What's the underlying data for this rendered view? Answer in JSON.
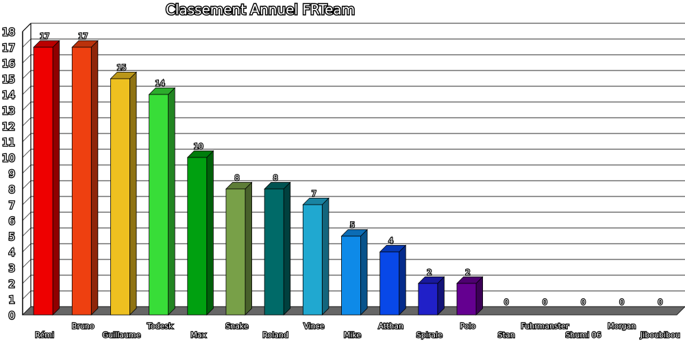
{
  "chart_data": {
    "type": "bar",
    "title": "Classement Annuel FRTeam",
    "xlabel": "",
    "ylabel": "",
    "ylim": [
      0,
      18
    ],
    "yticks": [
      0,
      1,
      2,
      3,
      4,
      5,
      6,
      7,
      8,
      9,
      10,
      11,
      12,
      13,
      14,
      15,
      16,
      17,
      18
    ],
    "grid": true,
    "legend": "none",
    "style": "3d",
    "categories": [
      "Rémi",
      "Bruno",
      "Guillaume",
      "Todesk",
      "Max",
      "Snake",
      "Roland",
      "Vince",
      "Mike",
      "Atthan",
      "Spirale",
      "Polo",
      "Stan",
      "Fuhrmanster",
      "Shumi 06",
      "Morgan",
      "Jiboubibou"
    ],
    "values": [
      17,
      17,
      15,
      14,
      10,
      8,
      8,
      7,
      5,
      4,
      2,
      2,
      0,
      0,
      0,
      0,
      0
    ],
    "value_labels": [
      "17",
      "17",
      "15",
      "14",
      "10",
      "8",
      "8",
      "7",
      "5",
      "4",
      "2",
      "2",
      "0",
      "0",
      "0",
      "0",
      "0"
    ],
    "colors": [
      "#ee0000",
      "#ee4010",
      "#eec020",
      "#38dd38",
      "#00a010",
      "#78a048",
      "#006a68",
      "#20a8d0",
      "#0e8ae8",
      "#0848e8",
      "#2020c8",
      "#640090",
      "#888888",
      "#888888",
      "#888888",
      "#888888",
      "#888888"
    ]
  }
}
